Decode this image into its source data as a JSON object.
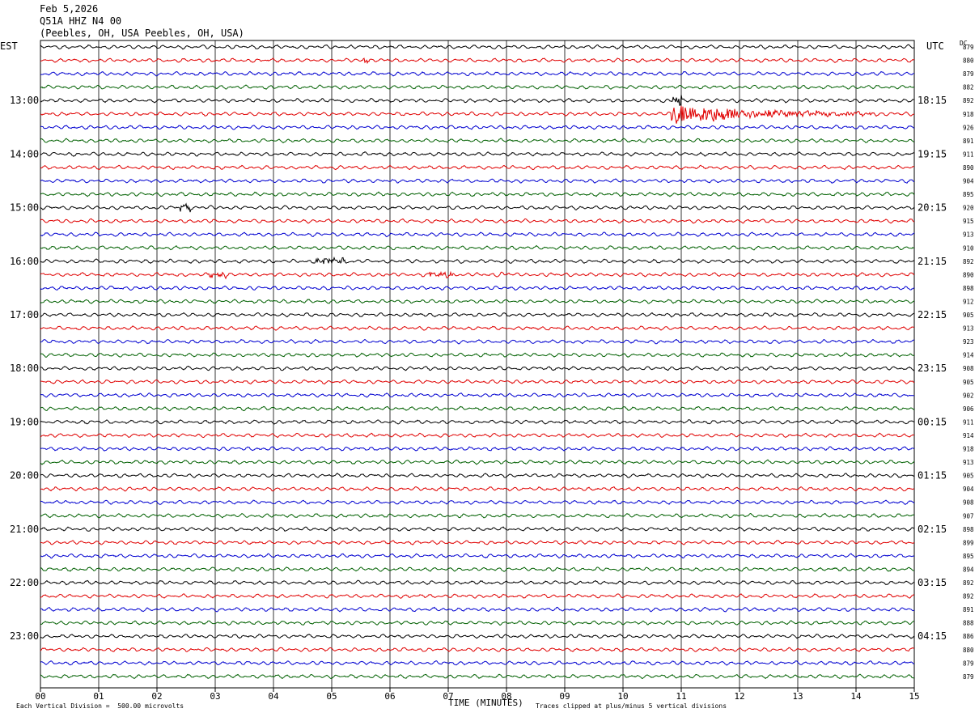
{
  "header": {
    "date": "Feb 5,2026",
    "station": "Q51A HHZ N4 00",
    "location": "(Peebles, OH, USA Peebles, OH, USA)"
  },
  "left_axis_label": "EST",
  "right_axis_label": "UTC",
  "dc_label": "DC",
  "footer": {
    "scale": "Each Vertical Division =  500.00 microvolts",
    "xlabel": "TIME (MINUTES)",
    "clip_note": "Traces clipped at plus/minus 5 vertical divisions"
  },
  "colors": {
    "trace_cycle": [
      "#000000",
      "#e00000",
      "#0000d0",
      "#006000"
    ],
    "grid": "#000000"
  },
  "chart_data": {
    "type": "line",
    "title": "",
    "xlabel": "TIME (MINUTES)",
    "ylabel": "",
    "xlim": [
      0,
      15
    ],
    "x_ticks": [
      "00",
      "01",
      "02",
      "03",
      "04",
      "05",
      "06",
      "07",
      "08",
      "09",
      "10",
      "11",
      "12",
      "13",
      "14",
      "15"
    ],
    "rows_per_hour": 4,
    "row_count": 48,
    "left_hour_labels": [
      "13:00",
      "14:00",
      "15:00",
      "16:00",
      "17:00",
      "18:00",
      "19:00",
      "20:00",
      "21:00",
      "22:00",
      "23:00"
    ],
    "right_hour_labels": [
      "18:15",
      "19:15",
      "20:15",
      "21:15",
      "22:15",
      "23:15",
      "00:15",
      "01:15",
      "02:15",
      "03:15",
      "04:15"
    ],
    "dc_offsets": [
      "879",
      "880",
      "879",
      "882",
      "892",
      "918",
      "926",
      "891",
      "911",
      "890",
      "904",
      "895",
      "920",
      "915",
      "913",
      "910",
      "892",
      "890",
      "898",
      "912",
      "905",
      "913",
      "923",
      "914",
      "908",
      "905",
      "902",
      "906",
      "911",
      "914",
      "918",
      "913",
      "905",
      "904",
      "908",
      "907",
      "898",
      "899",
      "895",
      "894",
      "892",
      "892",
      "891",
      "888",
      "886",
      "880",
      "879",
      "879"
    ],
    "events": [
      {
        "row": 1,
        "minute": 5.55,
        "amplitude": 1.6,
        "duration_min": 0.1
      },
      {
        "row": 4,
        "minute": 10.88,
        "amplitude": 3.0,
        "duration_min": 0.12
      },
      {
        "row": 5,
        "minute": 10.85,
        "amplitude": 5.0,
        "duration_min": 3.5
      },
      {
        "row": 12,
        "minute": 2.42,
        "amplitude": 1.8,
        "duration_min": 0.15
      },
      {
        "row": 16,
        "minute": 4.75,
        "amplitude": 1.4,
        "duration_min": 0.5
      },
      {
        "row": 17,
        "minute": 2.9,
        "amplitude": 1.2,
        "duration_min": 0.3
      },
      {
        "row": 17,
        "minute": 6.7,
        "amplitude": 1.0,
        "duration_min": 0.4
      },
      {
        "row": 17,
        "minute": 7.9,
        "amplitude": 1.0,
        "duration_min": 0.15
      }
    ]
  }
}
